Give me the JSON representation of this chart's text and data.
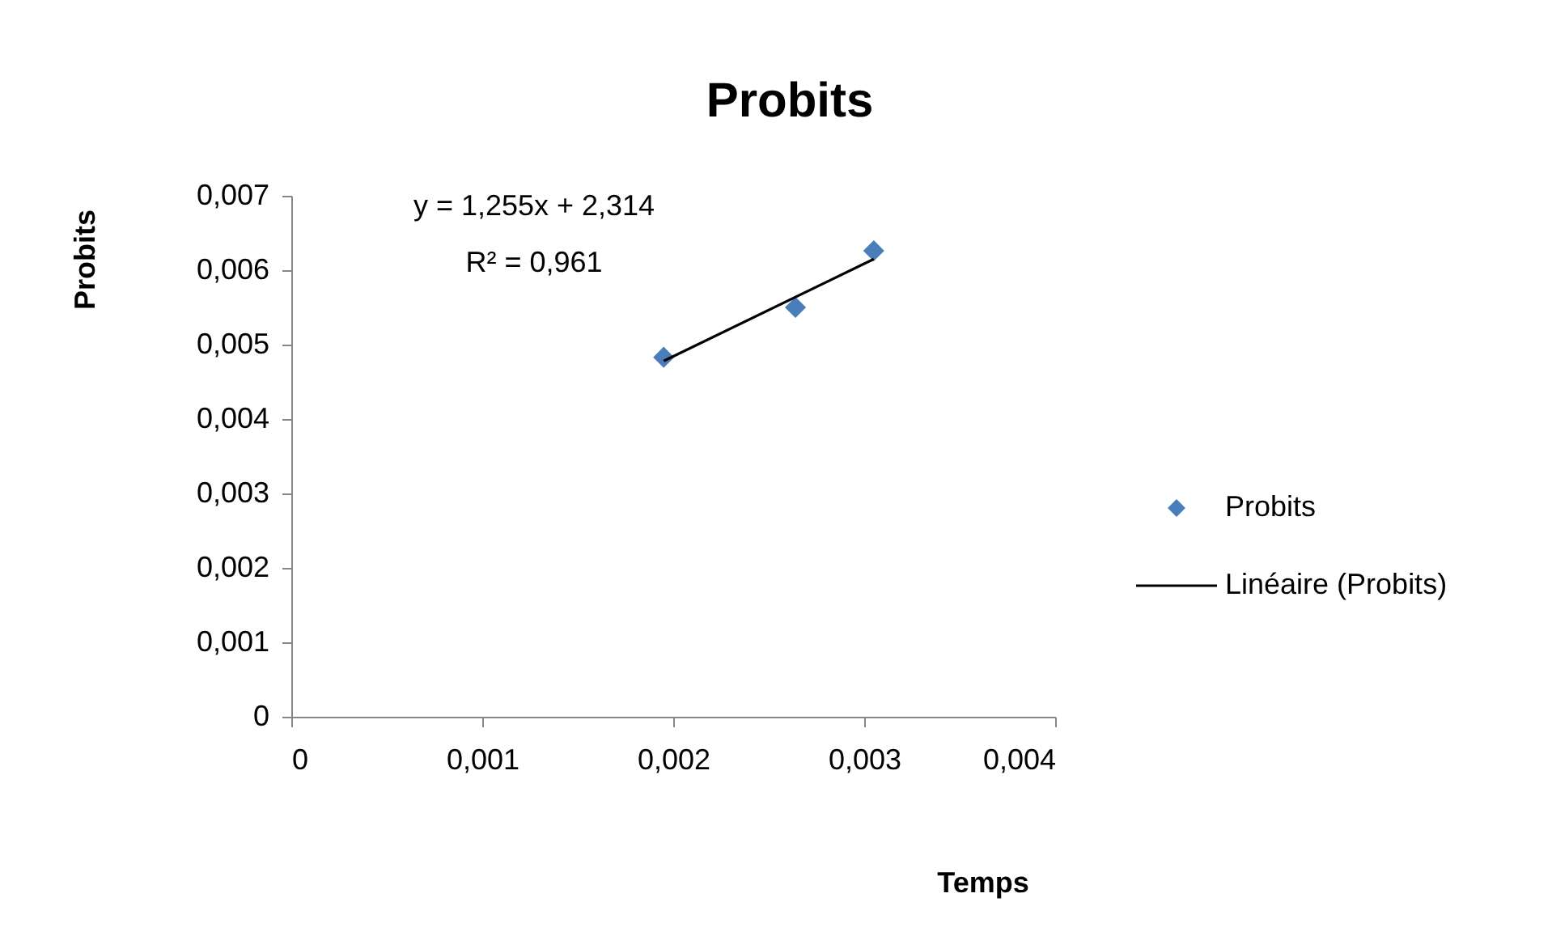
{
  "chart_data": {
    "type": "scatter",
    "title": "Probits",
    "xlabel": "Temps",
    "ylabel": "Probits",
    "xlim": [
      0,
      0.004
    ],
    "xticks": [
      0,
      {
        "value": 0.001,
        "label": "0,001"
      },
      {
        "value": 0.002,
        "label": "0,002"
      },
      {
        "value": 0.003,
        "label": "0,003"
      },
      {
        "value": 0.004,
        "label": "0,004"
      }
    ],
    "ylim": [
      0,
      0.007
    ],
    "yticks": [
      0,
      {
        "value": 0.001,
        "label": "0,001"
      },
      {
        "value": 0.002,
        "label": "0,002"
      },
      {
        "value": 0.003,
        "label": "0,003"
      },
      {
        "value": 0.004,
        "label": "0,004"
      },
      {
        "value": 0.005,
        "label": "0,005"
      },
      {
        "value": 0.006,
        "label": "0,006"
      },
      {
        "value": 0.007,
        "label": "0,007"
      }
    ],
    "x": [
      0.00195,
      0.00264,
      0.00305
    ],
    "series": [
      {
        "name": "Probits",
        "color": "#4a7ebb",
        "marker": "diamond",
        "values": [
          0.00483,
          0.0055,
          0.00626
        ]
      },
      {
        "name": "Linéaire (Probits)",
        "color": "#000000",
        "type": "line",
        "line_style": "solid",
        "x": [
          0.00195,
          0.00305
        ],
        "values": [
          0.00478,
          0.00615
        ]
      }
    ],
    "annotations": [
      "y = 1,255x + 2,314",
      "R² = 0,961"
    ],
    "grid": false,
    "legend": "right"
  }
}
